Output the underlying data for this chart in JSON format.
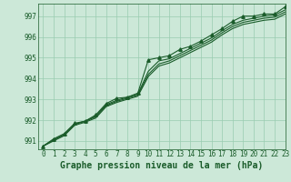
{
  "title": "Graphe pression niveau de la mer (hPa)",
  "background_color": "#cce8d8",
  "grid_color": "#99ccb0",
  "line_color": "#1a5c2a",
  "xlim": [
    -0.5,
    23
  ],
  "ylim": [
    990.6,
    997.6
  ],
  "yticks": [
    991,
    992,
    993,
    994,
    995,
    996,
    997
  ],
  "xticks": [
    0,
    1,
    2,
    3,
    4,
    5,
    6,
    7,
    8,
    9,
    10,
    11,
    12,
    13,
    14,
    15,
    16,
    17,
    18,
    19,
    20,
    21,
    22,
    23
  ],
  "series": [
    [
      990.75,
      991.1,
      991.35,
      991.85,
      991.95,
      992.25,
      992.8,
      993.05,
      993.1,
      993.3,
      994.9,
      995.0,
      995.1,
      995.4,
      995.55,
      995.8,
      996.1,
      996.4,
      996.75,
      997.0,
      997.0,
      997.1,
      997.1,
      997.45
    ],
    [
      990.75,
      991.05,
      991.3,
      991.8,
      991.95,
      992.2,
      992.75,
      992.95,
      993.1,
      993.25,
      994.35,
      994.85,
      994.95,
      995.2,
      995.45,
      995.7,
      995.95,
      996.3,
      996.6,
      996.8,
      996.9,
      997.0,
      997.05,
      997.3
    ],
    [
      990.75,
      991.05,
      991.3,
      991.8,
      991.95,
      992.15,
      992.7,
      992.9,
      993.05,
      993.2,
      994.2,
      994.7,
      994.85,
      995.1,
      995.35,
      995.6,
      995.85,
      996.2,
      996.5,
      996.7,
      996.8,
      996.9,
      996.95,
      997.2
    ],
    [
      990.75,
      991.0,
      991.25,
      991.75,
      991.9,
      992.1,
      992.65,
      992.85,
      993.0,
      993.15,
      994.1,
      994.6,
      994.75,
      995.0,
      995.25,
      995.5,
      995.75,
      996.1,
      996.4,
      996.6,
      996.7,
      996.8,
      996.85,
      997.1
    ]
  ],
  "marker_series": 0,
  "marker": "^",
  "marker_size": 2.5,
  "linewidth": 0.8,
  "title_fontsize": 7,
  "tick_fontsize": 5.5
}
